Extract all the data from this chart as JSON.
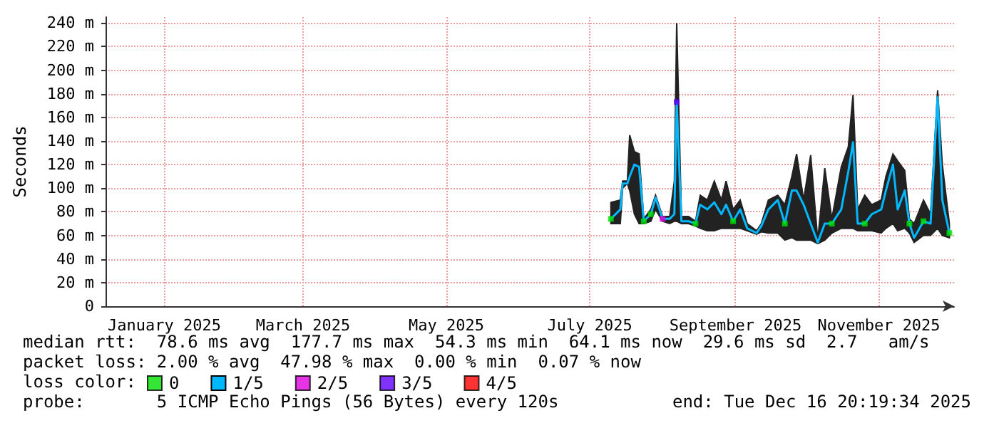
{
  "chart_data": {
    "type": "line",
    "ylabel": "Seconds",
    "legend_title": "loss color:",
    "legend": "bottom left",
    "grid": true,
    "marker": "none",
    "line_style": "solid",
    "xlim": [
      "2024-12-21",
      "2025-12-17"
    ],
    "xticks": [
      {
        "value": "2025-01-15",
        "label": "January 2025"
      },
      {
        "value": "2025-03-15",
        "label": "March 2025"
      },
      {
        "value": "2025-05-15",
        "label": "May 2025"
      },
      {
        "value": "2025-07-15",
        "label": "July 2025"
      },
      {
        "value": "2025-09-15",
        "label": "September 2025"
      },
      {
        "value": "2025-11-15",
        "label": "November 2025"
      }
    ],
    "ylim": [
      0,
      245
    ],
    "yticks": [
      0,
      {
        "value": 20,
        "label": "20 m"
      },
      {
        "value": 40,
        "label": "40 m"
      },
      {
        "value": 60,
        "label": "60 m"
      },
      {
        "value": 80,
        "label": "80 m"
      },
      {
        "value": 100,
        "label": "100 m"
      },
      {
        "value": 120,
        "label": "120 m"
      },
      {
        "value": 140,
        "label": "140 m"
      },
      {
        "value": 160,
        "label": "160 m"
      },
      {
        "value": 180,
        "label": "180 m"
      },
      {
        "value": 200,
        "label": "200 m"
      },
      {
        "value": 220,
        "label": "220 m"
      },
      {
        "value": 240,
        "label": "240 m"
      }
    ],
    "x": [
      "2025-07-24",
      "2025-07-28",
      "2025-07-29",
      "2025-07-31",
      "2025-08-01",
      "2025-08-03",
      "2025-08-05",
      "2025-08-07",
      "2025-08-10",
      "2025-08-12",
      "2025-08-15",
      "2025-08-18",
      "2025-08-20",
      "2025-08-21",
      "2025-08-23",
      "2025-08-26",
      "2025-08-29",
      "2025-08-31",
      "2025-09-03",
      "2025-09-06",
      "2025-09-09",
      "2025-09-11",
      "2025-09-14",
      "2025-09-17",
      "2025-09-20",
      "2025-09-24",
      "2025-09-26",
      "2025-09-29",
      "2025-10-03",
      "2025-10-06",
      "2025-10-09",
      "2025-10-11",
      "2025-10-14",
      "2025-10-17",
      "2025-10-20",
      "2025-10-23",
      "2025-10-26",
      "2025-10-30",
      "2025-11-02",
      "2025-11-04",
      "2025-11-06",
      "2025-11-09",
      "2025-11-12",
      "2025-11-16",
      "2025-11-18",
      "2025-11-21",
      "2025-11-23",
      "2025-11-26",
      "2025-11-28",
      "2025-11-30",
      "2025-12-04",
      "2025-12-07",
      "2025-12-10",
      "2025-12-12",
      "2025-12-15"
    ],
    "series": [
      {
        "name": "0",
        "color": "#00e000",
        "type": "scatter",
        "marker": "square",
        "values": [
          74,
          null,
          null,
          null,
          null,
          null,
          null,
          72,
          78,
          null,
          null,
          null,
          null,
          null,
          null,
          null,
          70,
          null,
          null,
          null,
          null,
          null,
          72,
          null,
          null,
          null,
          null,
          null,
          null,
          70,
          null,
          null,
          null,
          null,
          null,
          null,
          70,
          null,
          null,
          null,
          null,
          70,
          null,
          null,
          null,
          null,
          null,
          null,
          70,
          null,
          72,
          null,
          null,
          null,
          62
        ]
      },
      {
        "name": "1/5",
        "color": "#00b8ff",
        "values": [
          74,
          82,
          104,
          104,
          110,
          120,
          118,
          72,
          78,
          92,
          74,
          74,
          78,
          173,
          72,
          72,
          70,
          86,
          82,
          88,
          78,
          86,
          72,
          82,
          66,
          62,
          68,
          82,
          90,
          70,
          98,
          98,
          86,
          70,
          54,
          70,
          70,
          82,
          114,
          139,
          70,
          70,
          78,
          82,
          98,
          120,
          82,
          98,
          70,
          58,
          72,
          70,
          177,
          90,
          62
        ],
        "lower": [
          70,
          70,
          100,
          104,
          98,
          78,
          70,
          70,
          72,
          82,
          72,
          70,
          72,
          72,
          70,
          70,
          68,
          66,
          64,
          64,
          66,
          66,
          66,
          66,
          64,
          61,
          63,
          62,
          62,
          56,
          58,
          56,
          56,
          56,
          53,
          56,
          62,
          66,
          66,
          66,
          64,
          64,
          64,
          62,
          66,
          70,
          64,
          66,
          62,
          54,
          60,
          60,
          66,
          60,
          58
        ],
        "upper": [
          88,
          90,
          106,
          106,
          145,
          131,
          129,
          74,
          82,
          94,
          76,
          76,
          106,
          240,
          76,
          76,
          72,
          94,
          90,
          106,
          90,
          106,
          82,
          90,
          70,
          64,
          70,
          90,
          94,
          86,
          110,
          129,
          90,
          128,
          56,
          117,
          74,
          118,
          135,
          179,
          82,
          94,
          86,
          90,
          110,
          129,
          123,
          115,
          74,
          70,
          90,
          78,
          183,
          120,
          70
        ]
      },
      {
        "name": "2/5",
        "color": "#e000e0",
        "type": "scatter",
        "marker": "square",
        "values": [
          null,
          null,
          null,
          null,
          null,
          null,
          null,
          null,
          null,
          null,
          74,
          null,
          null,
          null,
          null,
          null,
          null,
          null,
          null,
          null,
          null,
          null,
          null,
          null,
          null,
          null,
          null,
          null,
          null,
          null,
          null,
          null,
          null,
          null,
          null,
          null,
          null,
          null,
          null,
          null,
          null,
          null,
          null,
          null,
          null,
          null,
          null,
          null,
          null,
          null,
          null,
          null,
          null,
          null,
          null
        ]
      },
      {
        "name": "3/5",
        "color": "#6000ff",
        "type": "scatter",
        "marker": "square",
        "values": [
          null,
          null,
          null,
          null,
          null,
          null,
          null,
          null,
          null,
          null,
          null,
          null,
          null,
          173,
          null,
          null,
          null,
          null,
          null,
          null,
          null,
          null,
          null,
          null,
          null,
          null,
          null,
          null,
          null,
          null,
          null,
          null,
          null,
          null,
          null,
          null,
          null,
          null,
          null,
          null,
          null,
          null,
          null,
          null,
          null,
          null,
          null,
          null,
          null,
          null,
          null,
          null,
          null,
          null,
          null
        ]
      },
      {
        "name": "4/5",
        "color": "#ff0000",
        "type": "scatter",
        "marker": "square",
        "values": [
          null,
          null,
          null,
          null,
          null,
          null,
          null,
          null,
          null,
          null,
          null,
          null,
          null,
          null,
          null,
          null,
          null,
          null,
          null,
          null,
          null,
          null,
          null,
          null,
          null,
          null,
          null,
          null,
          null,
          null,
          null,
          null,
          null,
          null,
          null,
          null,
          null,
          null,
          null,
          null,
          null,
          null,
          null,
          null,
          null,
          null,
          null,
          null,
          null,
          null,
          null,
          null,
          null,
          null,
          null
        ]
      }
    ],
    "annotations": [
      "median rtt:  78.6 ms avg  177.7 ms max  54.3 ms min  64.1 ms now  29.6 ms sd  2.7   am/s",
      "packet loss: 2.00 % avg  47.98 % max  0.00 % min  0.07 % now",
      "probe:       5 ICMP Echo Pings (56 Bytes) every 120s",
      "end: Tue Dec 16 20:19:34 2025"
    ]
  }
}
